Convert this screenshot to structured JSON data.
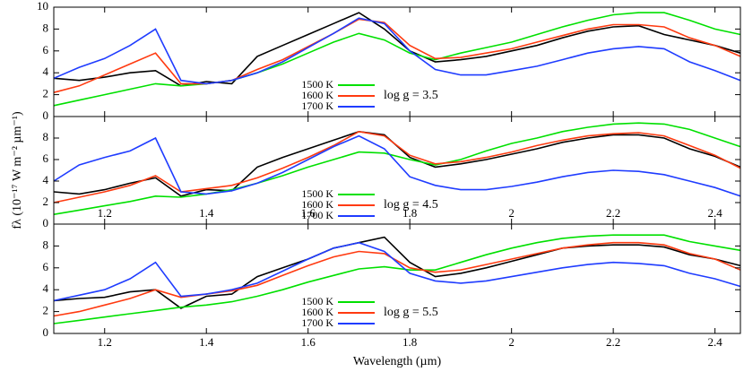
{
  "chart_data": [
    {
      "type": "line",
      "x": [
        1.1,
        1.15,
        1.2,
        1.25,
        1.3,
        1.35,
        1.4,
        1.45,
        1.5,
        1.55,
        1.6,
        1.65,
        1.7,
        1.75,
        1.8,
        1.85,
        1.9,
        1.95,
        2.0,
        2.05,
        2.1,
        2.15,
        2.2,
        2.25,
        2.3,
        2.35,
        2.4,
        2.45
      ],
      "xlim": [
        1.1,
        2.45
      ],
      "xticks": [
        1.2,
        1.4,
        1.6,
        1.8,
        2,
        2.2,
        2.4
      ],
      "ylim": [
        0,
        10
      ],
      "yticks": [
        0,
        2,
        4,
        6,
        8,
        10
      ],
      "annotation": "log g = 3.5",
      "xtick_labels": "none",
      "series": [
        {
          "color": "#000000",
          "values": [
            3.5,
            3.3,
            3.6,
            4.0,
            4.2,
            2.8,
            3.2,
            3.0,
            5.5,
            6.5,
            7.5,
            8.5,
            9.5,
            8.0,
            6.0,
            5.0,
            5.2,
            5.5,
            6.0,
            6.5,
            7.2,
            7.8,
            8.2,
            8.3,
            7.5,
            7.0,
            6.5,
            5.8
          ]
        },
        {
          "name": "1500 K",
          "color": "#00e000",
          "values": [
            1.0,
            1.5,
            2.0,
            2.5,
            3.0,
            2.8,
            3.0,
            3.3,
            4.0,
            4.8,
            5.8,
            6.8,
            7.6,
            7.0,
            5.8,
            5.2,
            5.8,
            6.3,
            6.8,
            7.5,
            8.2,
            8.8,
            9.3,
            9.5,
            9.5,
            8.8,
            8.0,
            7.5
          ]
        },
        {
          "name": "1600 K",
          "color": "#ff3a10",
          "values": [
            2.2,
            2.8,
            3.8,
            4.8,
            5.8,
            3.0,
            3.0,
            3.3,
            4.3,
            5.2,
            6.4,
            7.6,
            8.9,
            8.6,
            6.5,
            5.3,
            5.4,
            5.8,
            6.2,
            6.8,
            7.4,
            8.0,
            8.4,
            8.4,
            8.2,
            7.2,
            6.5,
            5.5
          ]
        },
        {
          "name": "1700 K",
          "color": "#1f3cff",
          "values": [
            3.5,
            4.5,
            5.3,
            6.5,
            8.0,
            3.3,
            3.0,
            3.3,
            4.0,
            5.0,
            6.3,
            7.6,
            9.0,
            8.5,
            6.0,
            4.3,
            3.8,
            3.8,
            4.2,
            4.6,
            5.2,
            5.8,
            6.2,
            6.4,
            6.2,
            5.0,
            4.2,
            3.3
          ]
        }
      ]
    },
    {
      "type": "line",
      "x": [
        1.1,
        1.15,
        1.2,
        1.25,
        1.3,
        1.35,
        1.4,
        1.45,
        1.5,
        1.55,
        1.6,
        1.65,
        1.7,
        1.75,
        1.8,
        1.85,
        1.9,
        1.95,
        2.0,
        2.05,
        2.1,
        2.15,
        2.2,
        2.25,
        2.3,
        2.35,
        2.4,
        2.45
      ],
      "xlim": [
        1.1,
        2.45
      ],
      "xticks": [
        1.2,
        1.4,
        1.6,
        1.8,
        2,
        2.2,
        2.4
      ],
      "ylim": [
        0,
        10
      ],
      "yticks": [
        0,
        2,
        4,
        6,
        8
      ],
      "annotation": "log g = 4.5",
      "xtick_labels": "inside",
      "ylabel": "fλ (10⁻¹⁷ W m⁻² µm⁻¹)",
      "series": [
        {
          "color": "#000000",
          "values": [
            3.0,
            2.8,
            3.2,
            3.8,
            4.3,
            2.6,
            3.2,
            3.1,
            5.3,
            6.2,
            7.0,
            7.8,
            8.6,
            8.3,
            6.2,
            5.3,
            5.6,
            6.0,
            6.5,
            7.0,
            7.6,
            8.0,
            8.3,
            8.3,
            8.0,
            7.0,
            6.3,
            5.3
          ]
        },
        {
          "name": "1500 K",
          "color": "#00e000",
          "values": [
            0.9,
            1.3,
            1.7,
            2.1,
            2.6,
            2.5,
            2.8,
            3.2,
            3.8,
            4.5,
            5.3,
            6.0,
            6.7,
            6.6,
            6.0,
            5.5,
            6.0,
            6.8,
            7.5,
            8.0,
            8.6,
            9.0,
            9.3,
            9.4,
            9.3,
            8.8,
            8.0,
            7.2
          ]
        },
        {
          "name": "1600 K",
          "color": "#ff3a10",
          "values": [
            2.0,
            2.5,
            3.0,
            3.6,
            4.5,
            3.0,
            3.3,
            3.6,
            4.3,
            5.2,
            6.2,
            7.3,
            8.6,
            8.2,
            6.4,
            5.6,
            5.8,
            6.2,
            6.7,
            7.3,
            7.8,
            8.2,
            8.4,
            8.5,
            8.2,
            7.3,
            6.4,
            5.2
          ]
        },
        {
          "name": "1700 K",
          "color": "#1f3cff",
          "values": [
            4.0,
            5.5,
            6.2,
            6.8,
            8.0,
            3.0,
            2.8,
            3.1,
            3.8,
            4.8,
            6.0,
            7.2,
            8.2,
            7.0,
            4.4,
            3.6,
            3.2,
            3.2,
            3.5,
            3.9,
            4.4,
            4.8,
            5.0,
            4.9,
            4.6,
            4.0,
            3.4,
            2.6
          ]
        }
      ]
    },
    {
      "type": "line",
      "x": [
        1.1,
        1.15,
        1.2,
        1.25,
        1.3,
        1.35,
        1.4,
        1.45,
        1.5,
        1.55,
        1.6,
        1.65,
        1.7,
        1.75,
        1.8,
        1.85,
        1.9,
        1.95,
        2.0,
        2.05,
        2.1,
        2.15,
        2.2,
        2.25,
        2.3,
        2.35,
        2.4,
        2.45
      ],
      "xlim": [
        1.1,
        2.45
      ],
      "xticks": [
        1.2,
        1.4,
        1.6,
        1.8,
        2,
        2.2,
        2.4
      ],
      "ylim": [
        0,
        10
      ],
      "yticks": [
        0,
        2,
        4,
        6,
        8
      ],
      "annotation": "log g = 5.5",
      "xtick_labels": "below",
      "xlabel": "Wavelength (µm)",
      "series": [
        {
          "color": "#000000",
          "values": [
            3.0,
            3.2,
            3.3,
            3.8,
            4.0,
            2.3,
            3.4,
            3.6,
            5.2,
            6.0,
            6.8,
            7.8,
            8.3,
            8.8,
            6.5,
            5.2,
            5.5,
            6.0,
            6.6,
            7.2,
            7.8,
            8.0,
            8.1,
            8.1,
            7.9,
            7.2,
            6.8,
            6.2
          ]
        },
        {
          "name": "1500 K",
          "color": "#00e000",
          "values": [
            0.9,
            1.2,
            1.5,
            1.8,
            2.1,
            2.4,
            2.6,
            2.9,
            3.4,
            4.0,
            4.7,
            5.3,
            5.9,
            6.1,
            5.8,
            5.8,
            6.5,
            7.2,
            7.8,
            8.3,
            8.7,
            8.9,
            9.0,
            9.0,
            9.0,
            8.4,
            8.0,
            7.6
          ]
        },
        {
          "name": "1600 K",
          "color": "#ff3a10",
          "values": [
            1.6,
            2.0,
            2.6,
            3.2,
            4.0,
            3.3,
            3.6,
            3.9,
            4.4,
            5.3,
            6.2,
            7.0,
            7.5,
            7.3,
            6.0,
            5.6,
            5.8,
            6.3,
            6.8,
            7.3,
            7.8,
            8.1,
            8.3,
            8.3,
            8.1,
            7.3,
            6.8,
            5.8
          ]
        },
        {
          "name": "1700 K",
          "color": "#1f3cff",
          "values": [
            3.0,
            3.5,
            4.0,
            5.0,
            6.5,
            3.4,
            3.6,
            4.0,
            4.6,
            5.7,
            6.8,
            7.8,
            8.3,
            7.5,
            5.5,
            4.8,
            4.6,
            4.8,
            5.2,
            5.6,
            6.0,
            6.3,
            6.5,
            6.4,
            6.2,
            5.5,
            5.0,
            4.3
          ]
        }
      ]
    }
  ]
}
